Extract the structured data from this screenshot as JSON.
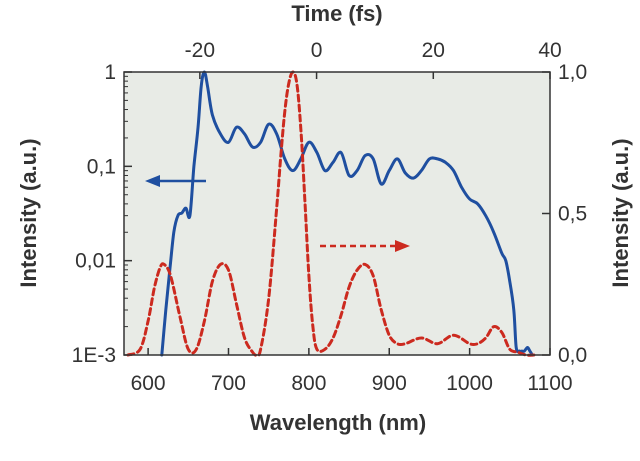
{
  "chart_data": {
    "type": "line",
    "title": "",
    "xlabel": "Wavelength (nm)",
    "top_xlabel": "Time (fs)",
    "ylabel_left": "Intensity (a.u.)",
    "ylabel_right": "Intensity (a.u.)",
    "xlim": [
      570,
      1100
    ],
    "x_ticks": [
      600,
      700,
      800,
      900,
      1000,
      1100
    ],
    "x_tick_labels": [
      "600",
      "700",
      "800",
      "900",
      "1000",
      "1100"
    ],
    "top_xlim": [
      -33,
      40
    ],
    "top_x_ticks": [
      -20,
      0,
      20,
      40
    ],
    "top_x_tick_labels": [
      "-20",
      "0",
      "20",
      "40"
    ],
    "left_scale": "log",
    "left_ylim": [
      0.001,
      1
    ],
    "left_y_ticks": [
      0.001,
      0.01,
      0.1,
      1
    ],
    "left_y_tick_labels": [
      "1E-3",
      "0,01",
      "0,1",
      "1"
    ],
    "right_ylim": [
      0,
      1
    ],
    "right_y_ticks": [
      0,
      0.5,
      1
    ],
    "right_y_tick_labels": [
      "0,0",
      "0,5",
      "1,0"
    ],
    "grid": false,
    "plot_background": "#e8ebe6",
    "series": [
      {
        "axis": "left-log",
        "x_axis": "Wavelength (nm)",
        "color": "#1f4fa0",
        "style": "solid",
        "x": [
          617,
          622,
          627,
          632,
          637,
          642,
          647,
          652,
          657,
          662,
          666,
          670,
          674,
          680,
          690,
          700,
          710,
          720,
          730,
          740,
          750,
          760,
          770,
          780,
          790,
          800,
          810,
          820,
          830,
          840,
          850,
          860,
          870,
          880,
          890,
          900,
          910,
          920,
          930,
          940,
          950,
          960,
          970,
          980,
          990,
          1000,
          1010,
          1020,
          1030,
          1040,
          1045,
          1050,
          1055,
          1058,
          1062,
          1065,
          1068,
          1072,
          1075,
          1078
        ],
        "y": [
          0.001,
          0.003,
          0.008,
          0.02,
          0.03,
          0.032,
          0.036,
          0.03,
          0.1,
          0.25,
          0.7,
          1.0,
          0.7,
          0.35,
          0.22,
          0.18,
          0.26,
          0.22,
          0.16,
          0.18,
          0.28,
          0.22,
          0.12,
          0.09,
          0.12,
          0.18,
          0.14,
          0.09,
          0.11,
          0.14,
          0.08,
          0.09,
          0.13,
          0.12,
          0.065,
          0.09,
          0.12,
          0.085,
          0.075,
          0.09,
          0.12,
          0.12,
          0.11,
          0.09,
          0.06,
          0.045,
          0.04,
          0.03,
          0.02,
          0.012,
          0.01,
          0.006,
          0.003,
          0.0012,
          0.0011,
          0.0011,
          0.0011,
          0.0012,
          0.0011,
          0.001
        ]
      },
      {
        "axis": "right-linear",
        "x_axis": "Wavelength (nm)",
        "color": "#cc2a1f",
        "style": "dashed",
        "x": [
          575,
          590,
          600,
          608,
          615,
          620,
          628,
          640,
          650,
          660,
          670,
          680,
          690,
          700,
          710,
          720,
          730,
          735,
          740,
          750,
          760,
          765,
          770,
          775,
          780,
          785,
          790,
          795,
          800,
          805,
          810,
          820,
          830,
          840,
          850,
          860,
          870,
          880,
          890,
          900,
          910,
          920,
          940,
          960,
          980,
          1000,
          1010,
          1020,
          1030,
          1040,
          1050,
          1060,
          1070,
          1080
        ],
        "y": [
          0.0,
          0.02,
          0.12,
          0.24,
          0.31,
          0.32,
          0.28,
          0.13,
          0.02,
          0.02,
          0.12,
          0.26,
          0.32,
          0.3,
          0.18,
          0.06,
          0.01,
          0.0,
          0.02,
          0.2,
          0.52,
          0.7,
          0.86,
          0.96,
          1.0,
          0.96,
          0.8,
          0.55,
          0.28,
          0.1,
          0.02,
          0.02,
          0.06,
          0.14,
          0.24,
          0.3,
          0.32,
          0.28,
          0.16,
          0.07,
          0.04,
          0.04,
          0.06,
          0.04,
          0.07,
          0.04,
          0.04,
          0.06,
          0.1,
          0.08,
          0.02,
          0.01,
          0.0,
          0.0
        ]
      }
    ],
    "annotations": [
      {
        "type": "arrow",
        "points_to": "left axis",
        "color": "#1f4fa0",
        "style": "solid"
      },
      {
        "type": "arrow",
        "points_to": "right axis",
        "color": "#cc2a1f",
        "style": "dashed"
      }
    ]
  }
}
